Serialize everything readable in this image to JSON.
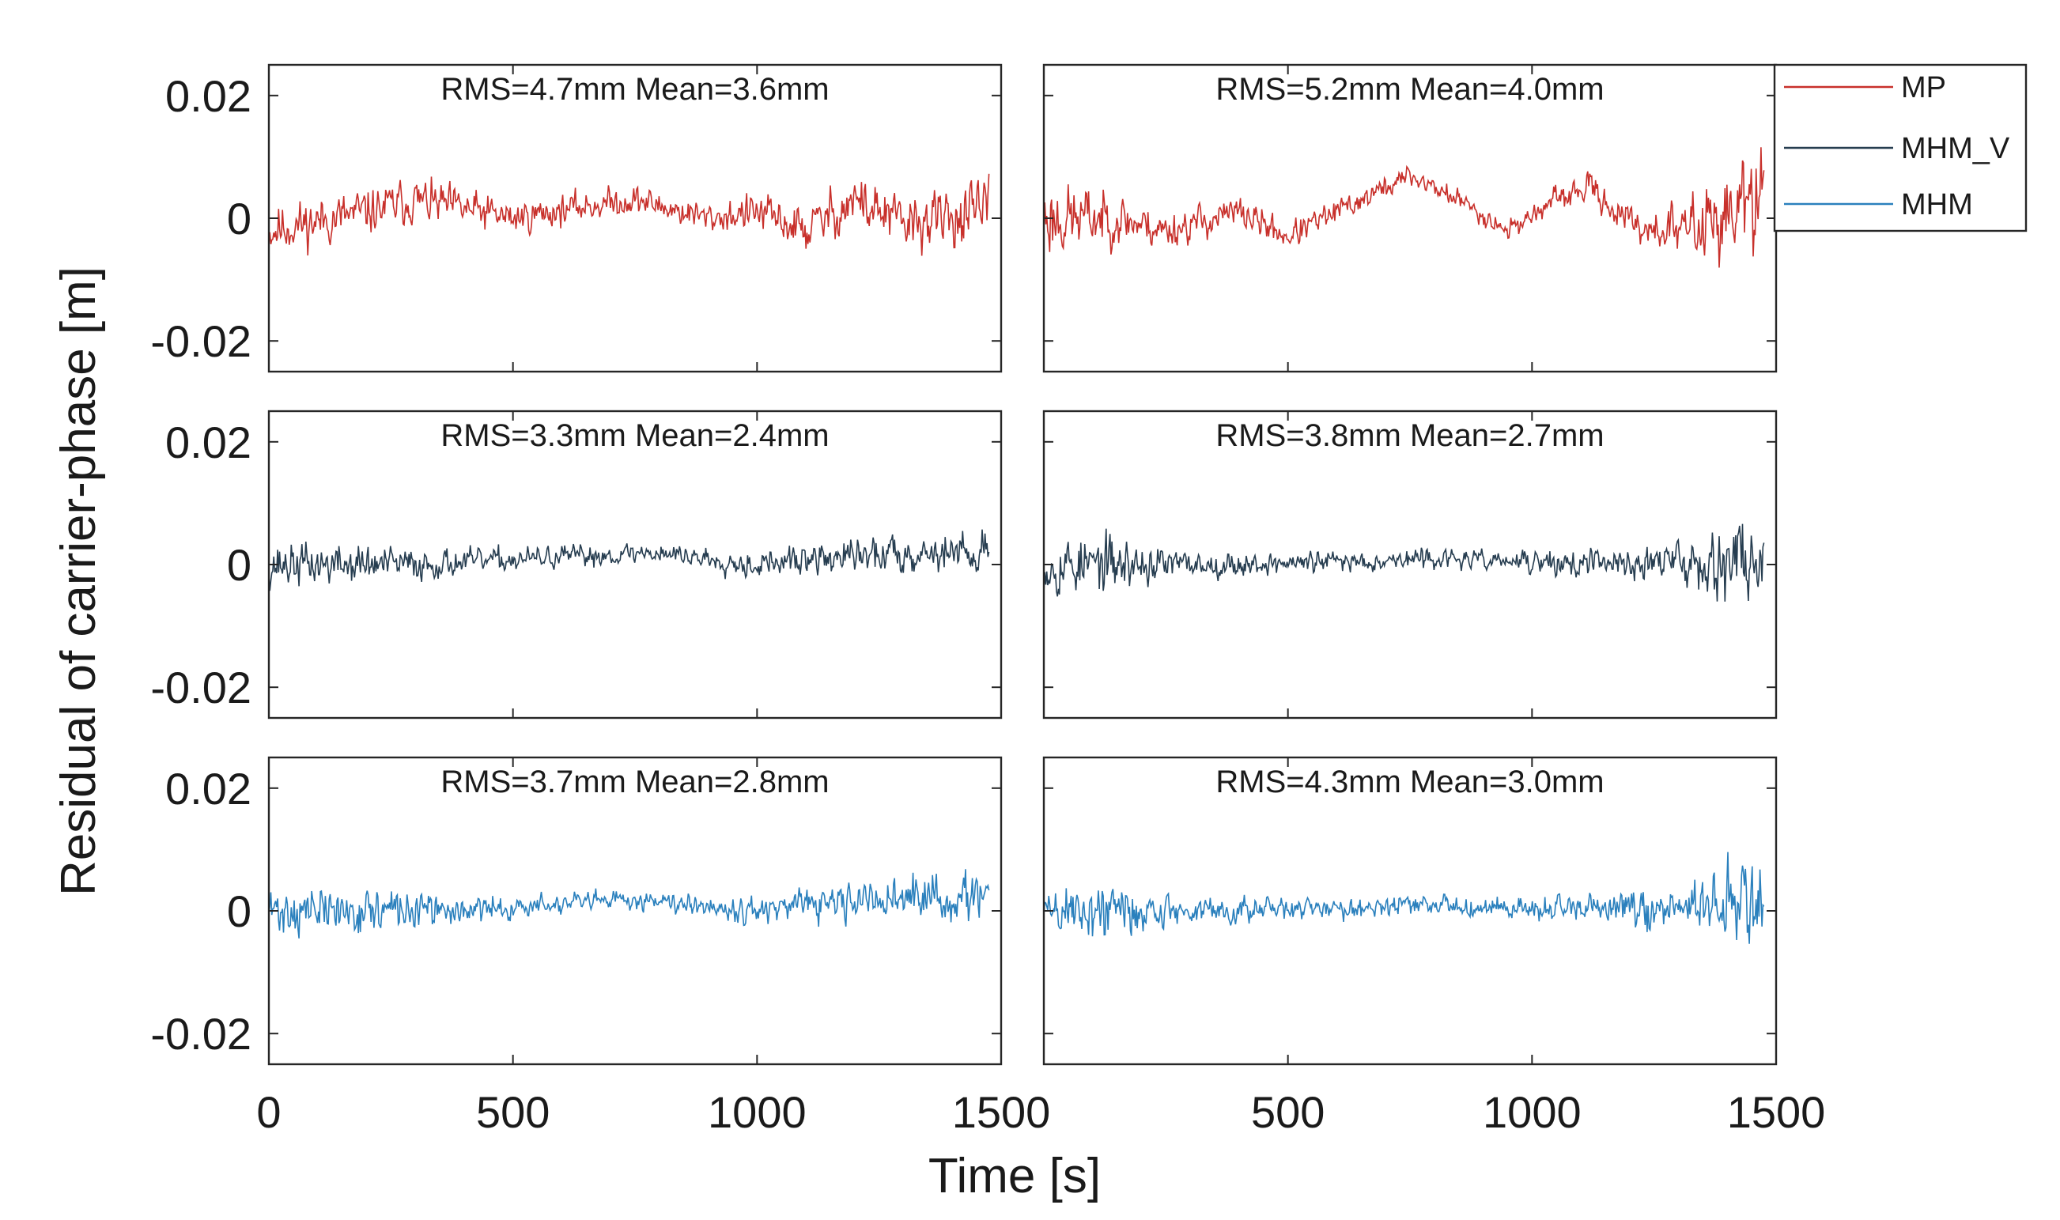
{
  "figure": {
    "ylabel": "Residual of carrier-phase [m]",
    "xlabel": "Time [s]"
  },
  "legend": [
    {
      "label": "MP",
      "color": "#c8302b"
    },
    {
      "label": "MHM_V",
      "color": "#263d50"
    },
    {
      "label": "MHM",
      "color": "#2a80bd"
    }
  ],
  "chart_data": [
    {
      "type": "line",
      "row": 0,
      "col": 0,
      "series": "MP",
      "color": "#c8302b",
      "annotation": "RMS=4.7mm  Mean=3.6mm",
      "xlim": [
        0,
        1500
      ],
      "ylim": [
        -0.025,
        0.025
      ],
      "yticks": [
        -0.02,
        0,
        0.02
      ],
      "ytick_labels": [
        "-0.02",
        "0",
        "0.02"
      ],
      "xticks": [
        0,
        500,
        1000,
        1500
      ],
      "xtick_labels": [],
      "x_end": 1475,
      "trend": [
        [
          0,
          -0.002
        ],
        [
          200,
          0.001
        ],
        [
          300,
          0.003
        ],
        [
          500,
          0.0
        ],
        [
          650,
          0.002
        ],
        [
          750,
          0.003
        ],
        [
          900,
          0.0
        ],
        [
          1000,
          0.001
        ],
        [
          1100,
          -0.002
        ],
        [
          1200,
          0.003
        ],
        [
          1300,
          -0.001
        ],
        [
          1475,
          0.001
        ]
      ],
      "noise": [
        [
          0,
          0.005
        ],
        [
          300,
          0.0045
        ],
        [
          600,
          0.003
        ],
        [
          900,
          0.003
        ],
        [
          1200,
          0.0055
        ],
        [
          1475,
          0.006
        ]
      ],
      "range": [
        -0.018,
        0.014
      ],
      "seed": 11
    },
    {
      "type": "line",
      "row": 0,
      "col": 1,
      "series": "MP",
      "color": "#c8302b",
      "annotation": "RMS=5.2mm  Mean=4.0mm",
      "xlim": [
        0,
        1500
      ],
      "ylim": [
        -0.025,
        0.025
      ],
      "yticks": [
        -0.02,
        0,
        0.02
      ],
      "ytick_labels": [],
      "xticks": [
        0,
        500,
        1000,
        1500
      ],
      "xtick_labels": [],
      "x_end": 1475,
      "trend": [
        [
          0,
          0.0
        ],
        [
          150,
          0.0
        ],
        [
          250,
          -0.002
        ],
        [
          400,
          0.001
        ],
        [
          500,
          -0.003
        ],
        [
          650,
          0.003
        ],
        [
          750,
          0.007
        ],
        [
          850,
          0.003
        ],
        [
          950,
          -0.002
        ],
        [
          1050,
          0.003
        ],
        [
          1120,
          0.005
        ],
        [
          1200,
          -0.001
        ],
        [
          1300,
          -0.002
        ],
        [
          1475,
          0.003
        ]
      ],
      "noise": [
        [
          0,
          0.008
        ],
        [
          100,
          0.006
        ],
        [
          200,
          0.004
        ],
        [
          600,
          0.0025
        ],
        [
          1000,
          0.002
        ],
        [
          1150,
          0.003
        ],
        [
          1300,
          0.005
        ],
        [
          1380,
          0.008
        ],
        [
          1475,
          0.013
        ]
      ],
      "range": [
        -0.017,
        0.025
      ],
      "seed": 23
    },
    {
      "type": "line",
      "row": 1,
      "col": 0,
      "series": "MHM_V",
      "color": "#263d50",
      "annotation": "RMS=3.3mm  Mean=2.4mm",
      "xlim": [
        0,
        1500
      ],
      "ylim": [
        -0.025,
        0.025
      ],
      "yticks": [
        -0.02,
        0,
        0.02
      ],
      "ytick_labels": [
        "-0.02",
        "0",
        "0.02"
      ],
      "xticks": [
        0,
        500,
        1000,
        1500
      ],
      "xtick_labels": [],
      "x_end": 1475,
      "trend": [
        [
          0,
          0.0
        ],
        [
          300,
          0.0
        ],
        [
          800,
          0.002
        ],
        [
          1000,
          0.0
        ],
        [
          1300,
          0.002
        ],
        [
          1475,
          0.002
        ]
      ],
      "noise": [
        [
          0,
          0.0045
        ],
        [
          200,
          0.004
        ],
        [
          400,
          0.0025
        ],
        [
          800,
          0.002
        ],
        [
          1100,
          0.003
        ],
        [
          1300,
          0.004
        ],
        [
          1475,
          0.004
        ]
      ],
      "range": [
        -0.013,
        0.012
      ],
      "seed": 37
    },
    {
      "type": "line",
      "row": 1,
      "col": 1,
      "series": "MHM_V",
      "color": "#263d50",
      "annotation": "RMS=3.8mm  Mean=2.7mm",
      "xlim": [
        0,
        1500
      ],
      "ylim": [
        -0.025,
        0.025
      ],
      "yticks": [
        -0.02,
        0,
        0.02
      ],
      "ytick_labels": [],
      "xticks": [
        0,
        500,
        1000,
        1500
      ],
      "xtick_labels": [],
      "x_end": 1475,
      "trend": [
        [
          0,
          0.0
        ],
        [
          400,
          0.0
        ],
        [
          800,
          0.001
        ],
        [
          1100,
          0.0
        ],
        [
          1475,
          0.001
        ]
      ],
      "noise": [
        [
          0,
          0.006
        ],
        [
          150,
          0.0055
        ],
        [
          300,
          0.0025
        ],
        [
          900,
          0.0018
        ],
        [
          1100,
          0.003
        ],
        [
          1300,
          0.004
        ],
        [
          1420,
          0.008
        ],
        [
          1475,
          0.007
        ]
      ],
      "range": [
        -0.021,
        0.022
      ],
      "seed": 53
    },
    {
      "type": "line",
      "row": 2,
      "col": 0,
      "series": "MHM",
      "color": "#2a80bd",
      "annotation": "RMS=3.7mm  Mean=2.8mm",
      "xlim": [
        0,
        1500
      ],
      "ylim": [
        -0.025,
        0.025
      ],
      "yticks": [
        -0.02,
        0,
        0.02
      ],
      "ytick_labels": [
        "-0.02",
        "0",
        "0.02"
      ],
      "xticks": [
        0,
        500,
        1000,
        1500
      ],
      "xtick_labels": [
        "0",
        "500",
        "1000",
        "1500"
      ],
      "x_end": 1475,
      "trend": [
        [
          0,
          0.0
        ],
        [
          400,
          0.0
        ],
        [
          800,
          0.002
        ],
        [
          1000,
          0.0
        ],
        [
          1300,
          0.002
        ],
        [
          1475,
          0.002
        ]
      ],
      "noise": [
        [
          0,
          0.005
        ],
        [
          200,
          0.0045
        ],
        [
          400,
          0.0025
        ],
        [
          800,
          0.002
        ],
        [
          1100,
          0.003
        ],
        [
          1300,
          0.0045
        ],
        [
          1475,
          0.005
        ]
      ],
      "range": [
        -0.014,
        0.013
      ],
      "seed": 71
    },
    {
      "type": "line",
      "row": 2,
      "col": 1,
      "series": "MHM",
      "color": "#2a80bd",
      "annotation": "RMS=4.3mm  Mean=3.0mm",
      "xlim": [
        0,
        1500
      ],
      "ylim": [
        -0.025,
        0.025
      ],
      "yticks": [
        -0.02,
        0,
        0.02
      ],
      "ytick_labels": [],
      "xticks": [
        0,
        500,
        1000,
        1500
      ],
      "xtick_labels": [
        "",
        "500",
        "1000",
        "1500"
      ],
      "x_end": 1475,
      "trend": [
        [
          0,
          0.0
        ],
        [
          400,
          0.0
        ],
        [
          800,
          0.001
        ],
        [
          1100,
          0.0
        ],
        [
          1475,
          0.001
        ]
      ],
      "noise": [
        [
          0,
          0.0065
        ],
        [
          150,
          0.006
        ],
        [
          300,
          0.0025
        ],
        [
          900,
          0.0018
        ],
        [
          1100,
          0.003
        ],
        [
          1300,
          0.0045
        ],
        [
          1420,
          0.009
        ],
        [
          1475,
          0.008
        ]
      ],
      "range": [
        -0.022,
        0.025
      ],
      "seed": 89
    }
  ]
}
